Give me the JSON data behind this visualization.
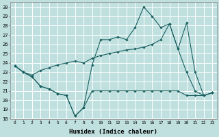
{
  "xlabel": "Humidex (Indice chaleur)",
  "bg_color": "#c0e0e0",
  "grid_color": "#ffffff",
  "line_color": "#1a6060",
  "xlim": [
    -0.5,
    23.5
  ],
  "ylim": [
    18,
    30.5
  ],
  "yticks": [
    18,
    19,
    20,
    21,
    22,
    23,
    24,
    25,
    26,
    27,
    28,
    29,
    30
  ],
  "xticks": [
    0,
    1,
    2,
    3,
    4,
    5,
    6,
    7,
    8,
    9,
    10,
    11,
    12,
    13,
    14,
    15,
    16,
    17,
    18,
    19,
    20,
    21,
    22,
    23
  ],
  "line1_x": [
    0,
    1,
    2,
    3,
    4,
    5,
    6,
    7,
    8,
    9,
    10,
    11,
    12,
    13,
    14,
    15,
    16,
    17,
    18,
    19,
    20,
    21,
    22,
    23
  ],
  "line1_y": [
    23.7,
    23.0,
    22.5,
    21.5,
    21.2,
    20.7,
    20.5,
    18.3,
    19.2,
    21.0,
    21.0,
    21.0,
    21.0,
    21.0,
    21.0,
    21.0,
    21.0,
    21.0,
    21.0,
    21.0,
    20.5,
    20.5,
    20.5,
    20.8
  ],
  "line2_x": [
    0,
    1,
    2,
    3,
    4,
    5,
    6,
    7,
    8,
    9,
    10,
    11,
    12,
    13,
    14,
    15,
    16,
    17,
    18,
    19,
    20,
    21,
    22,
    23
  ],
  "line2_y": [
    23.7,
    23.0,
    22.7,
    23.2,
    23.5,
    23.8,
    24.0,
    24.2,
    24.0,
    24.5,
    24.8,
    25.0,
    25.2,
    25.4,
    25.5,
    25.7,
    26.0,
    26.5,
    28.2,
    25.5,
    28.3,
    23.0,
    20.5,
    20.8
  ],
  "line3_x": [
    0,
    1,
    2,
    3,
    4,
    5,
    6,
    7,
    8,
    9,
    10,
    11,
    12,
    13,
    14,
    15,
    16,
    17,
    18,
    19,
    20,
    21,
    22,
    23
  ],
  "line3_y": [
    23.7,
    23.0,
    22.5,
    21.5,
    21.2,
    20.7,
    20.5,
    18.3,
    19.2,
    23.8,
    26.5,
    26.5,
    26.8,
    26.5,
    27.8,
    30.0,
    29.0,
    27.8,
    28.2,
    25.5,
    23.0,
    21.0,
    20.5,
    20.8
  ]
}
